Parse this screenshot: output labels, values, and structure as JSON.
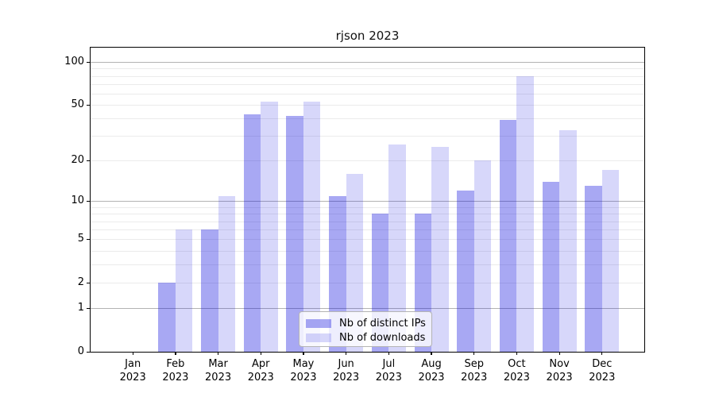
{
  "title": "rjson 2023",
  "chart_data": {
    "type": "bar",
    "title": "rjson 2023",
    "xlabel": "",
    "ylabel": "",
    "categories": [
      "Jan",
      "Feb",
      "Mar",
      "Apr",
      "May",
      "Jun",
      "Jul",
      "Aug",
      "Sep",
      "Oct",
      "Nov",
      "Dec"
    ],
    "category_year": "2023",
    "series": [
      {
        "key": "distinct-ips",
        "name": "Nb of distinct IPs",
        "color": "rgba(5,5,221,0.35)",
        "values": [
          0,
          2,
          6,
          43,
          42,
          11,
          8,
          8,
          12,
          39,
          14,
          13
        ]
      },
      {
        "key": "downloads",
        "name": "Nb of downloads",
        "color": "rgba(5,5,221,0.16)",
        "values": [
          0,
          6,
          11,
          53,
          53,
          16,
          26,
          25,
          20,
          80,
          33,
          17
        ]
      }
    ],
    "yscale": "log1p",
    "ylim": [
      0,
      126
    ],
    "yticks": [
      0,
      1,
      2,
      5,
      10,
      20,
      50,
      100
    ],
    "major_gridlines": [
      1,
      10,
      100
    ],
    "minor_gridlines": [
      2,
      3,
      4,
      5,
      6,
      7,
      8,
      9,
      20,
      30,
      40,
      50,
      60,
      70,
      80,
      90
    ],
    "grid": "both",
    "legend_position": "lower center",
    "colors": {
      "axis": "#000000",
      "major_grid": "#b3b3b3",
      "minor_grid": "#ebebeb",
      "bar_dark": "rgba(5,5,221,0.35)",
      "bar_light": "rgba(5,5,221,0.16)"
    }
  },
  "legend": {
    "items": [
      "Nb of distinct IPs",
      "Nb of downloads"
    ]
  }
}
